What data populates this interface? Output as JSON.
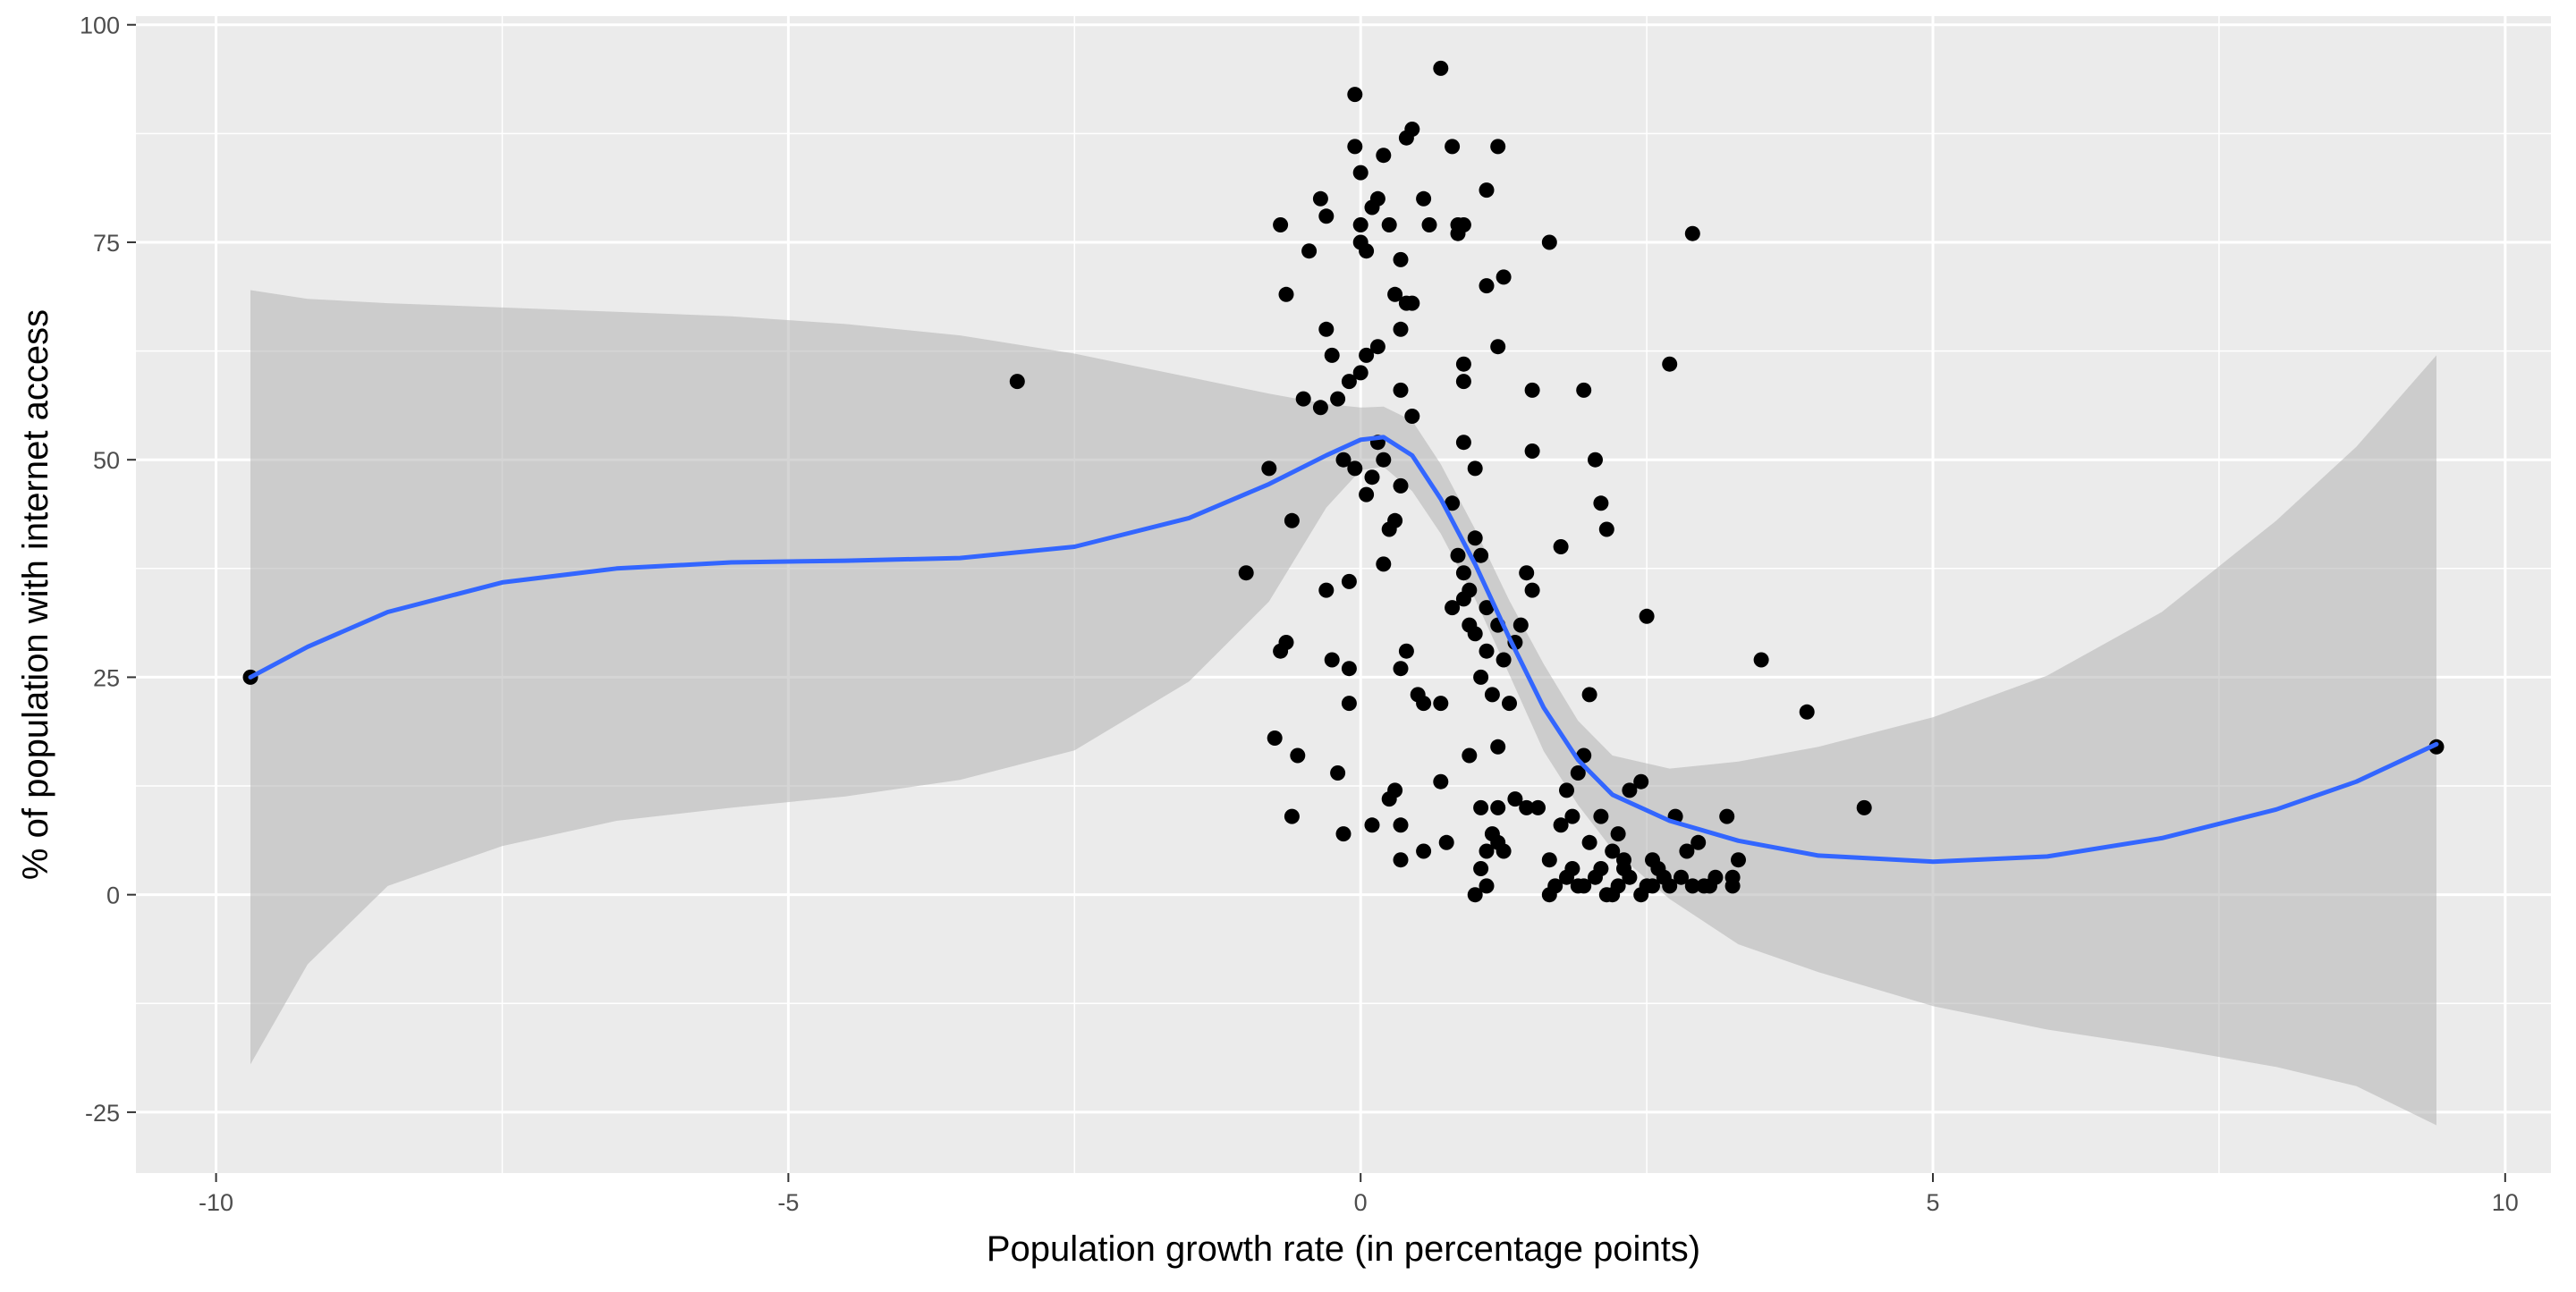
{
  "chart_data": {
    "type": "scatter",
    "title": "",
    "xlabel": "Population growth rate (in percentage points)",
    "ylabel": "% of population with internet access",
    "xlim": [
      -10.7,
      10.4
    ],
    "ylim": [
      -32,
      101
    ],
    "grid": true,
    "x_ticks": [
      -10,
      -5,
      0,
      5,
      10
    ],
    "x_tick_labels": [
      "-10",
      "-5",
      "0",
      "5",
      "10"
    ],
    "x_minor_ticks": [
      -7.5,
      -2.5,
      2.5,
      7.5
    ],
    "y_ticks": [
      -25,
      0,
      25,
      50,
      75,
      100
    ],
    "y_tick_labels": [
      "-25",
      "0",
      "25",
      "50",
      "75",
      "100"
    ],
    "y_minor_ticks": [
      -12.5,
      12.5,
      37.5,
      62.5,
      87.5
    ],
    "colors": {
      "panel_background": "#ebebeb",
      "grid": "#ffffff",
      "points": "#000000",
      "smooth_line": "#3366ff",
      "confidence_band": "#b3b3b3"
    },
    "points": [
      [
        -9.7,
        25
      ],
      [
        -3.0,
        59
      ],
      [
        9.4,
        17
      ],
      [
        -1.0,
        37
      ],
      [
        -0.8,
        49
      ],
      [
        -0.6,
        43
      ],
      [
        -0.7,
        28
      ],
      [
        -0.75,
        18
      ],
      [
        -0.6,
        9
      ],
      [
        -0.55,
        16
      ],
      [
        -0.65,
        29
      ],
      [
        -0.7,
        77
      ],
      [
        -0.65,
        69
      ],
      [
        -0.45,
        74
      ],
      [
        -0.35,
        80
      ],
      [
        -0.3,
        78
      ],
      [
        -0.3,
        65
      ],
      [
        -0.25,
        62
      ],
      [
        -0.2,
        57
      ],
      [
        -0.25,
        27
      ],
      [
        -0.2,
        14
      ],
      [
        -0.15,
        7
      ],
      [
        -0.1,
        22
      ],
      [
        -0.1,
        26
      ],
      [
        -0.05,
        92
      ],
      [
        -0.05,
        86
      ],
      [
        0.0,
        83
      ],
      [
        0.0,
        77
      ],
      [
        0.0,
        75
      ],
      [
        0.05,
        74
      ],
      [
        0.05,
        62
      ],
      [
        0.0,
        60
      ],
      [
        -0.1,
        59
      ],
      [
        0.05,
        46
      ],
      [
        -0.05,
        49
      ],
      [
        -0.1,
        36
      ],
      [
        -0.35,
        56
      ],
      [
        -0.5,
        57
      ],
      [
        -0.3,
        35
      ],
      [
        -0.15,
        50
      ],
      [
        0.1,
        79
      ],
      [
        0.15,
        80
      ],
      [
        0.2,
        85
      ],
      [
        0.25,
        77
      ],
      [
        0.3,
        69
      ],
      [
        0.35,
        73
      ],
      [
        0.4,
        87
      ],
      [
        0.45,
        88
      ],
      [
        0.4,
        68
      ],
      [
        0.45,
        68
      ],
      [
        0.35,
        65
      ],
      [
        0.55,
        80
      ],
      [
        0.6,
        77
      ],
      [
        0.7,
        95
      ],
      [
        0.8,
        86
      ],
      [
        0.85,
        77
      ],
      [
        0.9,
        77
      ],
      [
        0.85,
        76
      ],
      [
        0.9,
        61
      ],
      [
        0.9,
        59
      ],
      [
        1.1,
        81
      ],
      [
        1.2,
        86
      ],
      [
        1.25,
        71
      ],
      [
        1.1,
        70
      ],
      [
        1.2,
        63
      ],
      [
        0.15,
        63
      ],
      [
        0.2,
        38
      ],
      [
        0.3,
        43
      ],
      [
        0.25,
        42
      ],
      [
        0.35,
        47
      ],
      [
        0.2,
        50
      ],
      [
        0.35,
        58
      ],
      [
        0.45,
        55
      ],
      [
        0.1,
        48
      ],
      [
        0.15,
        52
      ],
      [
        0.4,
        28
      ],
      [
        0.5,
        23
      ],
      [
        0.55,
        22
      ],
      [
        0.35,
        26
      ],
      [
        0.7,
        22
      ],
      [
        0.3,
        12
      ],
      [
        0.25,
        11
      ],
      [
        0.35,
        8
      ],
      [
        0.1,
        8
      ],
      [
        0.35,
        4
      ],
      [
        0.55,
        5
      ],
      [
        0.75,
        6
      ],
      [
        0.7,
        13
      ],
      [
        0.8,
        45
      ],
      [
        0.9,
        52
      ],
      [
        1.0,
        49
      ],
      [
        0.85,
        39
      ],
      [
        0.9,
        37
      ],
      [
        0.95,
        35
      ],
      [
        1.0,
        41
      ],
      [
        1.05,
        39
      ],
      [
        0.95,
        31
      ],
      [
        1.0,
        30
      ],
      [
        0.8,
        33
      ],
      [
        0.9,
        34
      ],
      [
        1.1,
        33
      ],
      [
        1.2,
        31
      ],
      [
        1.1,
        28
      ],
      [
        1.25,
        27
      ],
      [
        1.35,
        29
      ],
      [
        1.05,
        25
      ],
      [
        1.15,
        23
      ],
      [
        1.3,
        22
      ],
      [
        1.4,
        31
      ],
      [
        1.45,
        37
      ],
      [
        1.5,
        35
      ],
      [
        1.5,
        58
      ],
      [
        1.65,
        75
      ],
      [
        1.5,
        51
      ],
      [
        1.75,
        40
      ],
      [
        1.95,
        58
      ],
      [
        2.05,
        50
      ],
      [
        2.1,
        45
      ],
      [
        2.15,
        42
      ],
      [
        2.0,
        23
      ],
      [
        2.5,
        32
      ],
      [
        2.7,
        61
      ],
      [
        2.9,
        76
      ],
      [
        3.5,
        27
      ],
      [
        3.9,
        21
      ],
      [
        4.4,
        10
      ],
      [
        1.2,
        17
      ],
      [
        0.95,
        16
      ],
      [
        1.05,
        10
      ],
      [
        1.2,
        10
      ],
      [
        1.35,
        11
      ],
      [
        1.45,
        10
      ],
      [
        1.55,
        10
      ],
      [
        1.65,
        4
      ],
      [
        1.75,
        8
      ],
      [
        1.8,
        12
      ],
      [
        1.9,
        14
      ],
      [
        1.95,
        16
      ],
      [
        1.85,
        9
      ],
      [
        2.0,
        6
      ],
      [
        2.1,
        9
      ],
      [
        2.2,
        5
      ],
      [
        2.25,
        7
      ],
      [
        2.3,
        3
      ],
      [
        2.35,
        12
      ],
      [
        2.45,
        13
      ],
      [
        2.55,
        1
      ],
      [
        2.65,
        2
      ],
      [
        2.75,
        9
      ],
      [
        2.85,
        5
      ],
      [
        2.95,
        6
      ],
      [
        3.05,
        1
      ],
      [
        3.2,
        9
      ],
      [
        3.3,
        4
      ],
      [
        3.25,
        1
      ],
      [
        1.05,
        3
      ],
      [
        1.1,
        5
      ],
      [
        1.15,
        7
      ],
      [
        1.25,
        5
      ],
      [
        1.2,
        6
      ],
      [
        1.0,
        0
      ],
      [
        1.1,
        1
      ],
      [
        1.65,
        0
      ],
      [
        1.7,
        1
      ],
      [
        1.8,
        2
      ],
      [
        1.85,
        3
      ],
      [
        1.95,
        1
      ],
      [
        2.05,
        2
      ],
      [
        2.15,
        0
      ],
      [
        2.25,
        1
      ],
      [
        2.35,
        2
      ],
      [
        2.45,
        0
      ],
      [
        2.5,
        1
      ],
      [
        2.6,
        3
      ],
      [
        2.7,
        1
      ],
      [
        2.8,
        2
      ],
      [
        2.9,
        1
      ],
      [
        3.0,
        1
      ],
      [
        3.1,
        2
      ],
      [
        3.25,
        2
      ],
      [
        2.2,
        0
      ],
      [
        2.3,
        4
      ],
      [
        2.1,
        3
      ],
      [
        1.9,
        1
      ],
      [
        2.55,
        4
      ]
    ],
    "smooth_line": [
      [
        -9.7,
        25
      ],
      [
        -9.2,
        28.5
      ],
      [
        -8.5,
        32.5
      ],
      [
        -7.5,
        35.9
      ],
      [
        -6.5,
        37.5
      ],
      [
        -5.5,
        38.2
      ],
      [
        -4.5,
        38.4
      ],
      [
        -3.5,
        38.7
      ],
      [
        -2.5,
        40.0
      ],
      [
        -1.5,
        43.3
      ],
      [
        -0.8,
        47.2
      ],
      [
        -0.3,
        50.5
      ],
      [
        0.0,
        52.3
      ],
      [
        0.2,
        52.6
      ],
      [
        0.45,
        50.5
      ],
      [
        0.7,
        45.5
      ],
      [
        1.0,
        38.0
      ],
      [
        1.3,
        29.5
      ],
      [
        1.6,
        21.5
      ],
      [
        1.9,
        15.5
      ],
      [
        2.2,
        11.5
      ],
      [
        2.7,
        8.5
      ],
      [
        3.3,
        6.2
      ],
      [
        4.0,
        4.5
      ],
      [
        5.0,
        3.8
      ],
      [
        6.0,
        4.4
      ],
      [
        7.0,
        6.5
      ],
      [
        8.0,
        9.8
      ],
      [
        8.7,
        13.0
      ],
      [
        9.4,
        17.3
      ]
    ],
    "confidence_band": {
      "x": [
        -9.7,
        -9.2,
        -8.5,
        -7.5,
        -6.5,
        -5.5,
        -4.5,
        -3.5,
        -2.5,
        -1.5,
        -0.8,
        -0.3,
        0.0,
        0.2,
        0.45,
        0.7,
        1.0,
        1.3,
        1.6,
        1.9,
        2.2,
        2.7,
        3.3,
        4.0,
        5.0,
        6.0,
        7.0,
        8.0,
        8.7,
        9.4
      ],
      "upper": [
        69.5,
        68.5,
        68.0,
        67.5,
        67.0,
        66.5,
        65.6,
        64.3,
        62.2,
        59.5,
        57.6,
        56.4,
        56.0,
        56.1,
        54.5,
        49.5,
        42.0,
        33.8,
        26.5,
        20.0,
        16.0,
        14.5,
        15.3,
        17.0,
        20.4,
        25.2,
        32.5,
        43.0,
        51.5,
        62.0
      ],
      "lower": [
        -19.5,
        -8.0,
        1.0,
        5.6,
        8.5,
        10.0,
        11.3,
        13.2,
        16.6,
        24.5,
        33.7,
        44.5,
        48.8,
        49.2,
        46.4,
        41.5,
        34.0,
        25.3,
        16.5,
        10.3,
        5.2,
        -0.5,
        -5.7,
        -8.9,
        -12.8,
        -15.5,
        -17.5,
        -19.8,
        -22.0,
        -26.5
      ]
    }
  }
}
